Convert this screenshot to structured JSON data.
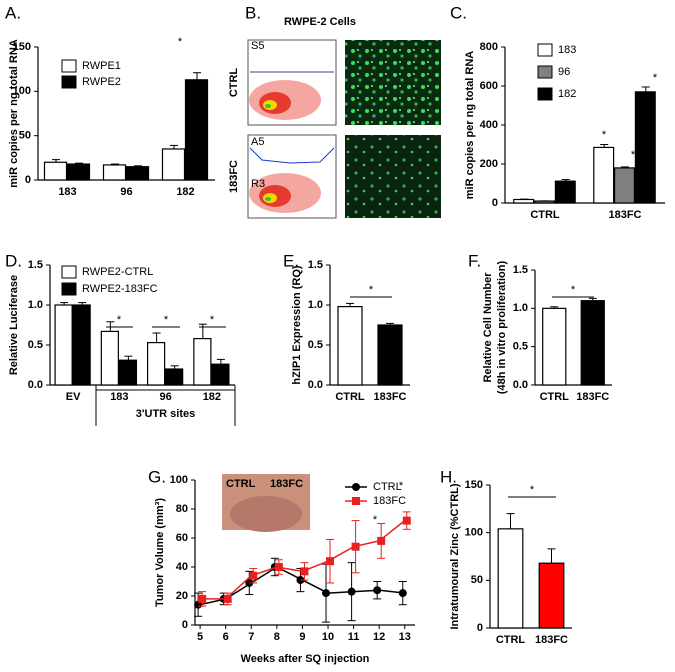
{
  "chart_data": [
    {
      "type": "bar",
      "panel_label": "A.",
      "ylabel": "miR copies per ng total RNA",
      "categories": [
        "183",
        "96",
        "182"
      ],
      "series": [
        {
          "name": "RWPE1",
          "color": "#ffffff",
          "values": [
            20,
            17,
            35
          ],
          "errors": [
            3,
            1,
            4
          ]
        },
        {
          "name": "RWPE2",
          "color": "#000000",
          "values": [
            18,
            15,
            113
          ],
          "errors": [
            1,
            1,
            8
          ]
        }
      ],
      "ylim": [
        0,
        150
      ],
      "yticks": [
        0,
        50,
        100,
        150
      ],
      "annotations": [
        "*"
      ]
    },
    {
      "type": "image",
      "panel_label": "B.",
      "title": "RWPE-2 Cells",
      "row_labels": [
        "CTRL",
        "183FC"
      ],
      "gate_labels": [
        "S5",
        "A5",
        "R3"
      ]
    },
    {
      "type": "bar",
      "panel_label": "C.",
      "ylabel": "miR copies per ng total RNA",
      "categories": [
        "CTRL",
        "183FC"
      ],
      "series": [
        {
          "name": "183",
          "color": "#ffffff",
          "values": [
            18,
            285
          ],
          "errors": [
            2,
            15
          ]
        },
        {
          "name": "96",
          "color": "#808080",
          "values": [
            10,
            180
          ],
          "errors": [
            1,
            5
          ]
        },
        {
          "name": "182",
          "color": "#000000",
          "values": [
            112,
            570
          ],
          "errors": [
            8,
            25
          ]
        }
      ],
      "ylim": [
        0,
        800
      ],
      "yticks": [
        0,
        200,
        400,
        600,
        800
      ],
      "annotations": [
        "*",
        "*",
        "*"
      ]
    },
    {
      "type": "bar",
      "panel_label": "D.",
      "ylabel": "Relative Luciferase",
      "categories": [
        "EV",
        "183",
        "96",
        "182"
      ],
      "group_label": "3'UTR sites",
      "series": [
        {
          "name": "RWPE2-CTRL",
          "color": "#ffffff",
          "values": [
            1.0,
            0.67,
            0.53,
            0.58
          ],
          "errors": [
            0.03,
            0.12,
            0.12,
            0.18
          ]
        },
        {
          "name": "RWPE2-183FC",
          "color": "#000000",
          "values": [
            1.0,
            0.31,
            0.2,
            0.26
          ],
          "errors": [
            0.03,
            0.05,
            0.04,
            0.06
          ]
        }
      ],
      "ylim": [
        0,
        1.5
      ],
      "yticks": [
        {
          "value": 0,
          "label": "0.0"
        },
        0.5,
        {
          "value": 1,
          "label": "1.0"
        },
        1.5
      ],
      "annotations": [
        "*",
        "*",
        "*"
      ]
    },
    {
      "type": "bar",
      "panel_label": "E.",
      "ylabel": "hZIP1 Expression (RQ)",
      "categories": [
        "CTRL",
        "183FC"
      ],
      "series": [
        {
          "colors": [
            "#ffffff",
            "#000000"
          ],
          "values": [
            0.98,
            0.75
          ],
          "errors": [
            0.04,
            0.02
          ]
        }
      ],
      "ylim": [
        0,
        1.5
      ],
      "yticks": [
        {
          "value": 0,
          "label": "0.0"
        },
        0.5,
        {
          "value": 1,
          "label": "1.0"
        },
        1.5
      ],
      "annotations": [
        "*"
      ]
    },
    {
      "type": "bar",
      "panel_label": "F.",
      "ylabel": [
        "Relative Cell Number",
        "(48h in vitro proliferation)"
      ],
      "categories": [
        "CTRL",
        "183FC"
      ],
      "series": [
        {
          "colors": [
            "#ffffff",
            "#000000"
          ],
          "values": [
            1.0,
            1.1
          ],
          "errors": [
            0.02,
            0.03
          ]
        }
      ],
      "ylim": [
        0,
        1.5
      ],
      "yticks": [
        {
          "value": 0,
          "label": "0.0"
        },
        0.5,
        {
          "value": 1,
          "label": "1.0"
        },
        1.5
      ],
      "annotations": [
        "*"
      ]
    },
    {
      "type": "line",
      "panel_label": "G.",
      "ylabel": "Tumor Volume (mm³)",
      "xlabel": "Weeks after SQ injection",
      "x": [
        5,
        6,
        7,
        8,
        9,
        10,
        11,
        12,
        13
      ],
      "inset_labels": [
        "CTRL",
        "183FC"
      ],
      "series": [
        {
          "name": "CTRL",
          "color": "#000000",
          "marker": "circle",
          "values": [
            14,
            18,
            29,
            40,
            31,
            22,
            23,
            24,
            22
          ],
          "errors": [
            8,
            4,
            8,
            6,
            8,
            20,
            20,
            6,
            8
          ]
        },
        {
          "name": "183FC",
          "color": "#e8211f",
          "marker": "square",
          "values": [
            18,
            18,
            34,
            40,
            37,
            44,
            54,
            58,
            72
          ],
          "errors": [
            5,
            4,
            5,
            5,
            6,
            15,
            18,
            12,
            6
          ]
        }
      ],
      "xlim": [
        4.8,
        13.4
      ],
      "xticks": [
        5,
        6,
        7,
        8,
        9,
        10,
        11,
        12,
        13
      ],
      "ylim": [
        0,
        100
      ],
      "yticks": [
        0,
        20,
        40,
        60,
        80,
        100
      ],
      "annotations": [
        "*",
        "*"
      ]
    },
    {
      "type": "bar",
      "panel_label": "H.",
      "ylabel": "Intratumoural Zinc (%CTRL)",
      "categories": [
        "CTRL",
        "183FC"
      ],
      "series": [
        {
          "colors": [
            "#ffffff",
            "#ff0000"
          ],
          "values": [
            104,
            68
          ],
          "errors": [
            16,
            15
          ]
        }
      ],
      "ylim": [
        0,
        150
      ],
      "yticks": [
        0,
        50,
        100,
        150
      ],
      "annotations": [
        "*"
      ]
    }
  ]
}
